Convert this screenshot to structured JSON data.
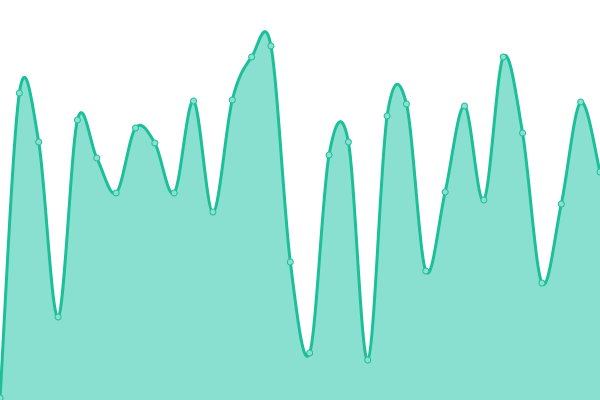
{
  "chart_data": {
    "type": "area",
    "title": "",
    "xlabel": "",
    "ylabel": "",
    "x": [
      0,
      1,
      2,
      3,
      4,
      5,
      6,
      7,
      8,
      9,
      10,
      11,
      12,
      13,
      14,
      15,
      16,
      17,
      18,
      19,
      20,
      21,
      22,
      23,
      24,
      25,
      26,
      27,
      28,
      29,
      30,
      31
    ],
    "values": [
      2,
      307,
      258,
      83,
      280,
      242,
      207,
      272,
      257,
      207,
      299,
      188,
      300,
      343,
      354,
      138,
      47,
      245,
      258,
      40,
      284,
      296,
      129,
      208,
      294,
      200,
      343,
      267,
      117,
      196,
      298,
      228
    ],
    "ylim": [
      0,
      400
    ],
    "grid": false,
    "axes_visible": false,
    "markers": true,
    "smooth": true,
    "colors": {
      "line": "#1dbf98",
      "fill": "#8ae0d0",
      "marker_fill": "#8ae0d0",
      "marker_stroke": "#1dbf98"
    }
  }
}
